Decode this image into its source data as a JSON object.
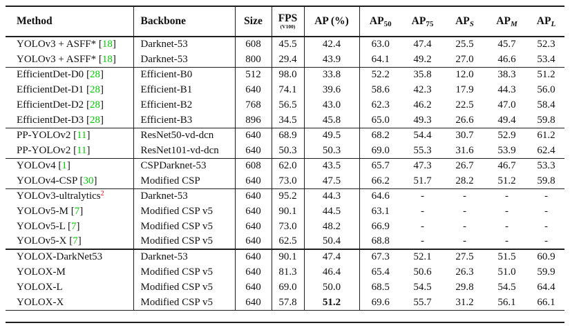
{
  "colors": {
    "text": "#111111",
    "cite_green": "#00cc00",
    "sup_red": "#ee0000",
    "rule": "#1c1c1c"
  },
  "table": {
    "headers": {
      "method": "Method",
      "backbone": "Backbone",
      "size": "Size",
      "fps": "FPS",
      "fps_sub": "(V100)",
      "ap": "AP (%)",
      "ap_cols": [
        {
          "base": "AP",
          "sub": "50"
        },
        {
          "base": "AP",
          "sub": "75"
        },
        {
          "base": "AP",
          "sub": "S"
        },
        {
          "base": "AP",
          "sub": "M"
        },
        {
          "base": "AP",
          "sub": "L"
        }
      ]
    },
    "groups": [
      {
        "rows": [
          {
            "method": "YOLOv3 + ASFF*",
            "cite": "18",
            "backbone": "Darknet-53",
            "size": "608",
            "fps": "45.5",
            "ap": "42.4",
            "ap50": "63.0",
            "ap75": "47.4",
            "aps": "25.5",
            "apm": "45.7",
            "apl": "52.3"
          },
          {
            "method": "YOLOv3 + ASFF*",
            "cite": "18",
            "backbone": "Darknet-53",
            "size": "800",
            "fps": "29.4",
            "ap": "43.9",
            "ap50": "64.1",
            "ap75": "49.2",
            "aps": "27.0",
            "apm": "46.6",
            "apl": "53.4"
          }
        ]
      },
      {
        "rows": [
          {
            "method": "EfficientDet-D0",
            "cite": "28",
            "backbone": "Efficient-B0",
            "size": "512",
            "fps": "98.0",
            "ap": "33.8",
            "ap50": "52.2",
            "ap75": "35.8",
            "aps": "12.0",
            "apm": "38.3",
            "apl": "51.2"
          },
          {
            "method": "EfficientDet-D1",
            "cite": "28",
            "backbone": "Efficient-B1",
            "size": "640",
            "fps": "74.1",
            "ap": "39.6",
            "ap50": "58.6",
            "ap75": "42.3",
            "aps": "17.9",
            "apm": "44.3",
            "apl": "56.0"
          },
          {
            "method": "EfficientDet-D2",
            "cite": "28",
            "backbone": "Efficient-B2",
            "size": "768",
            "fps": "56.5",
            "ap": "43.0",
            "ap50": "62.3",
            "ap75": "46.2",
            "aps": "22.5",
            "apm": "47.0",
            "apl": "58.4"
          },
          {
            "method": "EfficientDet-D3",
            "cite": "28",
            "backbone": "Efficient-B3",
            "size": "896",
            "fps": "34.5",
            "ap": "45.8",
            "ap50": "65.0",
            "ap75": "49.3",
            "aps": "26.6",
            "apm": "49.4",
            "apl": "59.8"
          }
        ]
      },
      {
        "rows": [
          {
            "method": "PP-YOLOv2",
            "cite": "11",
            "backbone": "ResNet50-vd-dcn",
            "size": "640",
            "fps": "68.9",
            "ap": "49.5",
            "ap50": "68.2",
            "ap75": "54.4",
            "aps": "30.7",
            "apm": "52.9",
            "apl": "61.2"
          },
          {
            "method": "PP-YOLOv2",
            "cite": "11",
            "backbone": "ResNet101-vd-dcn",
            "size": "640",
            "fps": "50.3",
            "ap": "50.3",
            "ap50": "69.0",
            "ap75": "55.3",
            "aps": "31.6",
            "apm": "53.9",
            "apl": "62.4"
          }
        ]
      },
      {
        "rows": [
          {
            "method": "YOLOv4",
            "cite": "1",
            "backbone": "CSPDarknet-53",
            "size": "608",
            "fps": "62.0",
            "ap": "43.5",
            "ap50": "65.7",
            "ap75": "47.3",
            "aps": "26.7",
            "apm": "46.7",
            "apl": "53.3"
          },
          {
            "method": "YOLOv4-CSP",
            "cite": "30",
            "backbone": "Modified CSP",
            "size": "640",
            "fps": "73.0",
            "ap": "47.5",
            "ap50": "66.2",
            "ap75": "51.7",
            "aps": "28.2",
            "apm": "51.2",
            "apl": "59.8"
          }
        ]
      },
      {
        "rows": [
          {
            "method": "YOLOv3-ultralytics",
            "sup": "2",
            "backbone": "Darknet-53",
            "size": "640",
            "fps": "95.2",
            "ap": "44.3",
            "ap50": "64.6",
            "ap75": "-",
            "aps": "-",
            "apm": "-",
            "apl": "-"
          },
          {
            "method": "YOLOv5-M",
            "cite": "7",
            "backbone": "Modified CSP v5",
            "size": "640",
            "fps": "90.1",
            "ap": "44.5",
            "ap50": "63.1",
            "ap75": "-",
            "aps": "-",
            "apm": "-",
            "apl": "-"
          },
          {
            "method": "YOLOv5-L",
            "cite": "7",
            "backbone": "Modified CSP v5",
            "size": "640",
            "fps": "73.0",
            "ap": "48.2",
            "ap50": "66.9",
            "ap75": "-",
            "aps": "-",
            "apm": "-",
            "apl": "-"
          },
          {
            "method": "YOLOv5-X",
            "cite": "7",
            "backbone": "Modified CSP v5",
            "size": "640",
            "fps": "62.5",
            "ap": "50.4",
            "ap50": "68.8",
            "ap75": "-",
            "aps": "-",
            "apm": "-",
            "apl": "-"
          }
        ]
      },
      {
        "rows": [
          {
            "method": "YOLOX-DarkNet53",
            "backbone": "Darknet-53",
            "size": "640",
            "fps": "90.1",
            "ap": "47.4",
            "ap50": "67.3",
            "ap75": "52.1",
            "aps": "27.5",
            "apm": "51.5",
            "apl": "60.9"
          },
          {
            "method": "YOLOX-M",
            "backbone": "Modified CSP v5",
            "size": "640",
            "fps": "81.3",
            "ap": "46.4",
            "ap50": "65.4",
            "ap75": "50.6",
            "aps": "26.3",
            "apm": "51.0",
            "apl": "59.9"
          },
          {
            "method": "YOLOX-L",
            "backbone": "Modified CSP v5",
            "size": "640",
            "fps": "69.0",
            "ap": "50.0",
            "ap50": "68.5",
            "ap75": "54.5",
            "aps": "29.8",
            "apm": "54.5",
            "apl": "64.4"
          },
          {
            "method": "YOLOX-X",
            "backbone": "Modified CSP v5",
            "size": "640",
            "fps": "57.8",
            "ap": "51.2",
            "ap_bold": true,
            "ap50": "69.6",
            "ap75": "55.7",
            "aps": "31.2",
            "apm": "56.1",
            "apl": "66.1"
          }
        ]
      }
    ]
  }
}
